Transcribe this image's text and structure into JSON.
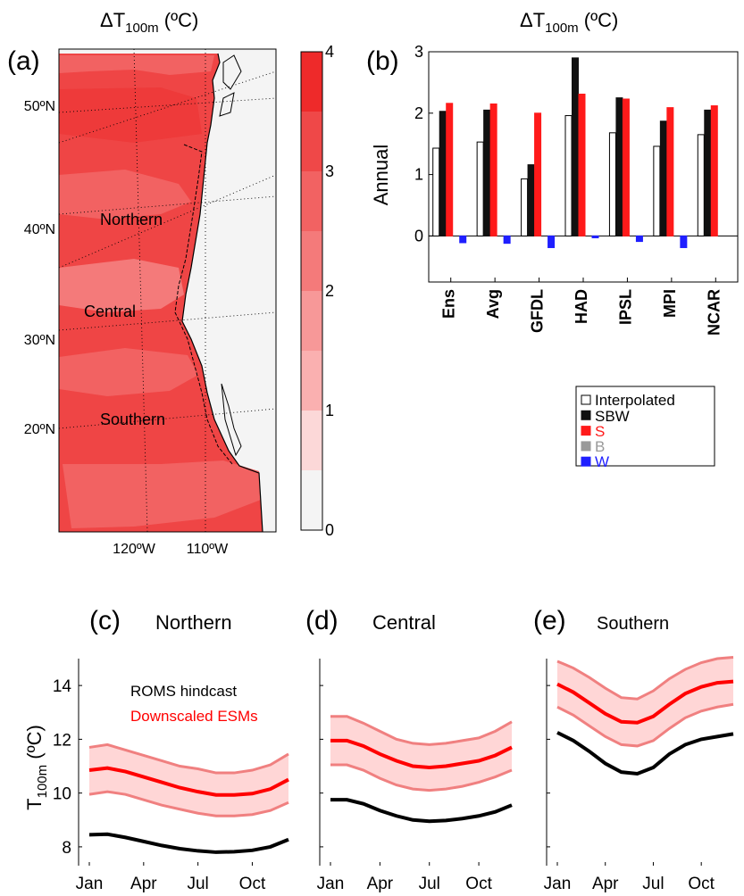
{
  "panel_a": {
    "letter": "(a)",
    "title_prefix": "ΔT",
    "title_sub": "100m",
    "title_suffix": " (ºC)",
    "lat_labels": [
      "50ºN",
      "40ºN",
      "30ºN",
      "20ºN"
    ],
    "lon_labels": [
      "120ºW",
      "110ºW"
    ],
    "region_labels": [
      "Northern",
      "Central",
      "Southern"
    ],
    "colorbar": {
      "ticks": [
        "0",
        "1",
        "2",
        "3",
        "4"
      ],
      "levels": [
        0,
        0.5,
        1,
        1.5,
        2,
        2.5,
        3,
        3.5,
        4
      ],
      "colors": [
        "#f4f4f4",
        "#fcd8d8",
        "#fab0b0",
        "#f79898",
        "#f47a7a",
        "#f26262",
        "#ef4848",
        "#ee2a2a"
      ]
    }
  },
  "panel_b": {
    "letter": "(b)",
    "title_prefix": "ΔT",
    "title_sub": "100m",
    "title_suffix": " (ºC)",
    "legend": [
      {
        "label": "Interpolated",
        "color": "#ffffff",
        "text_color": "#000000"
      },
      {
        "label": "SBW",
        "color": "#111111",
        "text_color": "#000000"
      },
      {
        "label": "S",
        "color": "#ff1a1a",
        "text_color": "#ff1a1a"
      },
      {
        "label": "B",
        "color": "#999999",
        "text_color": "#999999"
      },
      {
        "label": "W",
        "color": "#1f1fff",
        "text_color": "#1f1fff"
      }
    ]
  },
  "panel_c": {
    "letter": "(c)",
    "title": "Northern",
    "legend": [
      "ROMS hindcast",
      "Downscaled ESMs"
    ]
  },
  "panel_d": {
    "letter": "(d)",
    "title": "Central"
  },
  "panel_e": {
    "letter": "(e)",
    "title": "Southern"
  },
  "ylabel_c_prefix": "T",
  "ylabel_c_sub": "100m",
  "ylabel_c_suffix": " (ºC)",
  "colors": {
    "hindcast": "#000000",
    "esm_mean": "#ff0000",
    "esm_band_fill": "#ffd6d6",
    "esm_band_edge": "#f08080"
  },
  "chart_data": [
    {
      "type": "bar",
      "ylabel": "Annual",
      "categories": [
        "Ens",
        "Avg",
        "GFDL",
        "HAD",
        "IPSL",
        "MPI",
        "NCAR"
      ],
      "ylim": [
        -0.75,
        3
      ],
      "yticks": [
        0,
        1,
        2,
        3
      ],
      "series": [
        {
          "name": "Interpolated",
          "values": [
            1.43,
            1.53,
            0.93,
            1.96,
            1.68,
            1.46,
            1.65
          ]
        },
        {
          "name": "SBW",
          "values": [
            2.03,
            2.05,
            1.16,
            2.9,
            2.25,
            1.87,
            2.05
          ]
        },
        {
          "name": "S",
          "values": [
            2.16,
            2.15,
            2.0,
            2.31,
            2.23,
            2.09,
            2.12
          ]
        },
        {
          "name": "B",
          "values": [
            0,
            0,
            0,
            0,
            0,
            0,
            0
          ]
        },
        {
          "name": "W",
          "values": [
            -0.11,
            -0.12,
            -0.19,
            -0.03,
            -0.09,
            -0.19,
            0.0
          ]
        }
      ]
    },
    {
      "type": "line",
      "x": [
        "Jan",
        "Feb",
        "Mar",
        "Apr",
        "May",
        "Jun",
        "Jul",
        "Aug",
        "Sep",
        "Oct",
        "Nov",
        "Dec"
      ],
      "xticks": [
        "Jan",
        "Apr",
        "Jul",
        "Oct"
      ],
      "ylim": [
        7.3,
        15
      ],
      "yticks": [
        8,
        10,
        12,
        14
      ],
      "series": [
        {
          "name": "ROMS hindcast",
          "values": [
            8.45,
            8.47,
            8.35,
            8.2,
            8.05,
            7.93,
            7.85,
            7.8,
            7.82,
            7.87,
            8.0,
            8.27
          ]
        },
        {
          "name": "Downscaled ESMs",
          "values": [
            10.85,
            10.93,
            10.8,
            10.6,
            10.4,
            10.2,
            10.05,
            9.93,
            9.93,
            9.98,
            10.15,
            10.5
          ]
        },
        {
          "values": [
            11.7,
            11.8,
            11.6,
            11.4,
            11.2,
            11.0,
            10.9,
            10.75,
            10.75,
            10.85,
            11.05,
            11.45
          ]
        },
        {
          "values": [
            9.95,
            10.05,
            9.95,
            9.75,
            9.55,
            9.4,
            9.25,
            9.15,
            9.15,
            9.2,
            9.35,
            9.65
          ]
        }
      ]
    },
    {
      "type": "line",
      "x": [
        "Jan",
        "Feb",
        "Mar",
        "Apr",
        "May",
        "Jun",
        "Jul",
        "Aug",
        "Sep",
        "Oct",
        "Nov",
        "Dec"
      ],
      "xticks": [
        "Jan",
        "Apr",
        "Jul",
        "Oct"
      ],
      "ylim": [
        7.3,
        15
      ],
      "series": [
        {
          "values": [
            9.75,
            9.75,
            9.6,
            9.35,
            9.15,
            9.0,
            8.95,
            8.98,
            9.05,
            9.15,
            9.3,
            9.55
          ]
        },
        {
          "values": [
            11.95,
            11.95,
            11.75,
            11.45,
            11.2,
            11.0,
            10.95,
            11.0,
            11.1,
            11.2,
            11.4,
            11.7
          ]
        },
        {
          "values": [
            12.85,
            12.85,
            12.6,
            12.3,
            12.0,
            11.85,
            11.8,
            11.85,
            11.95,
            12.05,
            12.3,
            12.65
          ]
        },
        {
          "values": [
            11.05,
            11.05,
            10.85,
            10.55,
            10.3,
            10.15,
            10.1,
            10.15,
            10.25,
            10.4,
            10.6,
            10.85
          ]
        }
      ]
    },
    {
      "type": "line",
      "x": [
        "Jan",
        "Feb",
        "Mar",
        "Apr",
        "May",
        "Jun",
        "Jul",
        "Aug",
        "Sep",
        "Oct",
        "Nov",
        "Dec"
      ],
      "xticks": [
        "Jan",
        "Apr",
        "Jul",
        "Oct"
      ],
      "ylim": [
        7.3,
        15
      ],
      "series": [
        {
          "values": [
            12.25,
            11.95,
            11.55,
            11.1,
            10.78,
            10.72,
            10.95,
            11.45,
            11.8,
            12.0,
            12.1,
            12.2
          ]
        },
        {
          "values": [
            14.05,
            13.75,
            13.35,
            12.95,
            12.65,
            12.62,
            12.85,
            13.3,
            13.7,
            13.95,
            14.1,
            14.15
          ]
        },
        {
          "values": [
            14.9,
            14.65,
            14.3,
            13.9,
            13.55,
            13.5,
            13.8,
            14.25,
            14.6,
            14.85,
            15.0,
            15.05
          ]
        },
        {
          "values": [
            13.2,
            12.9,
            12.5,
            12.1,
            11.8,
            11.75,
            11.95,
            12.4,
            12.8,
            13.05,
            13.2,
            13.3
          ]
        }
      ]
    }
  ]
}
